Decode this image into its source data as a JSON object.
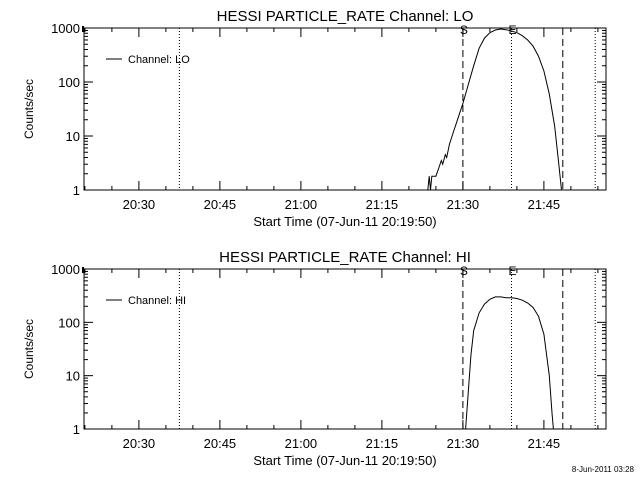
{
  "footer_stamp": "8-Jun-2011 03:28",
  "chart_data": [
    {
      "type": "line",
      "title": "HESSI PARTICLE_RATE Channel: LO",
      "xlabel": "Start Time (07-Jun-11 20:19:50)",
      "ylabel": "Counts/sec",
      "yscale": "log",
      "ylim": [
        1,
        1000
      ],
      "xlim": [
        "20:19:50",
        "21:56:30"
      ],
      "xticks": [
        "20:30",
        "20:45",
        "21:00",
        "21:15",
        "21:30",
        "21:45"
      ],
      "yticks": [
        "1",
        "10",
        "100",
        "1000"
      ],
      "legend": {
        "position": "top-left",
        "entries": [
          "Channel: LO"
        ]
      },
      "markers": [
        {
          "time": "20:37:30",
          "style": "dotted",
          "label": ""
        },
        {
          "time": "21:30:00",
          "style": "dashed",
          "label": "S"
        },
        {
          "time": "21:39:00",
          "style": "dotted",
          "label": "E"
        },
        {
          "time": "21:48:30",
          "style": "dashed",
          "label": ""
        },
        {
          "time": "21:54:30",
          "style": "dotted",
          "label": ""
        }
      ],
      "series": [
        {
          "name": "Channel: LO",
          "points": [
            [
              "21:23:30",
              1
            ],
            [
              "21:23:45",
              1.8
            ],
            [
              "21:24:00",
              1.0
            ],
            [
              "21:24:15",
              1.8
            ],
            [
              "21:25:00",
              1.8
            ],
            [
              "21:25:30",
              2.5
            ],
            [
              "21:26:00",
              3.5
            ],
            [
              "21:26:15",
              3.0
            ],
            [
              "21:26:45",
              4.5
            ],
            [
              "21:27:00",
              4.0
            ],
            [
              "21:27:30",
              7
            ],
            [
              "21:28:00",
              10
            ],
            [
              "21:29:00",
              20
            ],
            [
              "21:30:00",
              40
            ],
            [
              "21:31:00",
              90
            ],
            [
              "21:32:00",
              200
            ],
            [
              "21:33:00",
              420
            ],
            [
              "21:34:00",
              650
            ],
            [
              "21:35:00",
              820
            ],
            [
              "21:36:00",
              920
            ],
            [
              "21:37:00",
              960
            ],
            [
              "21:38:00",
              930
            ],
            [
              "21:39:00",
              880
            ],
            [
              "21:40:00",
              820
            ],
            [
              "21:41:00",
              720
            ],
            [
              "21:42:00",
              600
            ],
            [
              "21:43:00",
              460
            ],
            [
              "21:44:00",
              300
            ],
            [
              "21:45:00",
              160
            ],
            [
              "21:46:00",
              60
            ],
            [
              "21:47:00",
              15
            ],
            [
              "21:47:45",
              3
            ],
            [
              "21:48:15",
              1
            ]
          ]
        }
      ]
    },
    {
      "type": "line",
      "title": "HESSI PARTICLE_RATE Channel: HI",
      "xlabel": "Start Time (07-Jun-11 20:19:50)",
      "ylabel": "Counts/sec",
      "yscale": "log",
      "ylim": [
        1,
        1000
      ],
      "xlim": [
        "20:19:50",
        "21:56:30"
      ],
      "xticks": [
        "20:30",
        "20:45",
        "21:00",
        "21:15",
        "21:30",
        "21:45"
      ],
      "yticks": [
        "1",
        "10",
        "100",
        "1000"
      ],
      "legend": {
        "position": "top-left",
        "entries": [
          "Channel: HI"
        ]
      },
      "markers": [
        {
          "time": "20:37:30",
          "style": "dotted",
          "label": ""
        },
        {
          "time": "21:30:00",
          "style": "dashed",
          "label": "S"
        },
        {
          "time": "21:39:00",
          "style": "dotted",
          "label": "E"
        },
        {
          "time": "21:48:30",
          "style": "dashed",
          "label": ""
        },
        {
          "time": "21:54:30",
          "style": "dotted",
          "label": ""
        }
      ],
      "series": [
        {
          "name": "Channel: HI",
          "points": [
            [
              "21:30:30",
              1
            ],
            [
              "21:31:00",
              5
            ],
            [
              "21:31:30",
              25
            ],
            [
              "21:32:00",
              70
            ],
            [
              "21:33:00",
              150
            ],
            [
              "21:34:00",
              220
            ],
            [
              "21:35:00",
              270
            ],
            [
              "21:36:00",
              300
            ],
            [
              "21:37:00",
              300
            ],
            [
              "21:38:00",
              290
            ],
            [
              "21:39:00",
              290
            ],
            [
              "21:40:00",
              280
            ],
            [
              "21:41:00",
              260
            ],
            [
              "21:42:00",
              230
            ],
            [
              "21:43:00",
              190
            ],
            [
              "21:44:00",
              130
            ],
            [
              "21:45:00",
              60
            ],
            [
              "21:46:00",
              10
            ],
            [
              "21:46:30",
              2
            ],
            [
              "21:46:45",
              1
            ]
          ]
        }
      ]
    }
  ]
}
